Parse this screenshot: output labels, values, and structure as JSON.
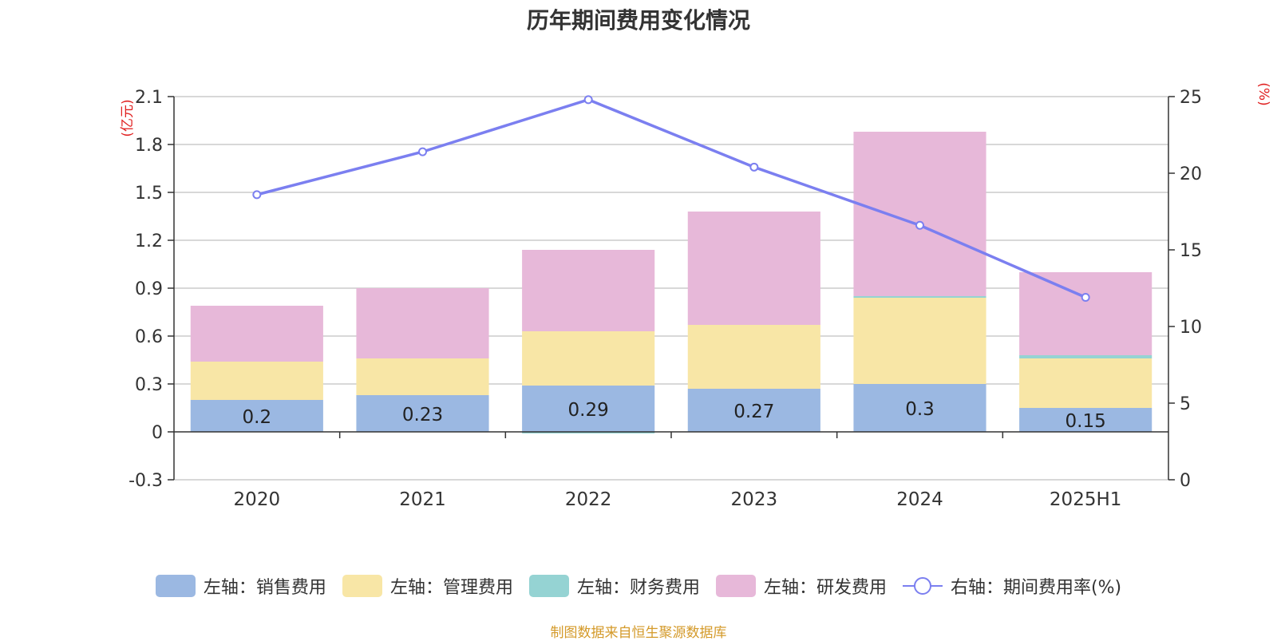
{
  "chart_data": {
    "type": "bar",
    "title": "历年期间费用变化情况",
    "categories": [
      "2020",
      "2021",
      "2022",
      "2023",
      "2024",
      "2025H1"
    ],
    "left_axis": {
      "unit": "(亿元)",
      "ylim": [
        -0.3,
        2.1
      ],
      "ticks": [
        "2.1",
        "1.8",
        "1.5",
        "1.2",
        "0.9",
        "0.6",
        "0.3",
        "0",
        "-0.3"
      ]
    },
    "right_axis": {
      "unit": "(%)",
      "ylim": [
        0,
        25
      ],
      "ticks": [
        "25",
        "20",
        "15",
        "10",
        "5",
        "0"
      ]
    },
    "stacked": true,
    "series": [
      {
        "name": "左轴：销售费用",
        "color": "#9bb8e2",
        "values": [
          0.2,
          0.23,
          0.29,
          0.27,
          0.3,
          0.15
        ],
        "data_labels": [
          "0.2",
          "0.23",
          "0.29",
          "0.27",
          "0.3",
          "0.15"
        ]
      },
      {
        "name": "左轴：管理费用",
        "color": "#f8e6a6",
        "values": [
          0.24,
          0.23,
          0.34,
          0.4,
          0.54,
          0.31
        ]
      },
      {
        "name": "左轴：财务费用",
        "color": "#95d3d3",
        "values": [
          0.0,
          0.0,
          -0.01,
          0.0,
          0.01,
          0.02
        ]
      },
      {
        "name": "左轴：研发费用",
        "color": "#e7b8d9",
        "values": [
          0.35,
          0.44,
          0.51,
          0.71,
          1.03,
          0.52
        ]
      }
    ],
    "line_series": {
      "name": "右轴：期间费用率(%)",
      "color": "#7b7ff0",
      "axis": "right",
      "values": [
        18.6,
        21.4,
        24.8,
        20.4,
        16.6,
        11.9
      ]
    },
    "grid": true,
    "legend_position": "bottom"
  },
  "source_note": "制图数据来自恒生聚源数据库"
}
